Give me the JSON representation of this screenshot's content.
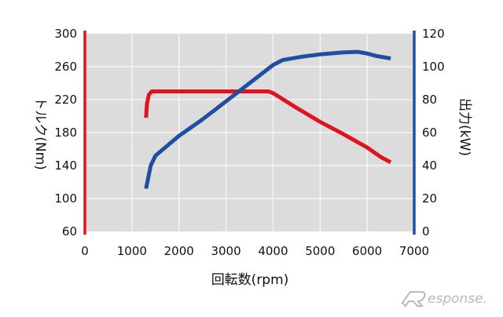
{
  "chart_data": {
    "type": "line",
    "xlabel": "回転数(rpm)",
    "x_ticks": [
      "0",
      "1000",
      "2000",
      "3000",
      "4000",
      "5000",
      "6000",
      "7000"
    ],
    "xlim": [
      0,
      7000
    ],
    "y_left": {
      "label": "トルク(Nm)",
      "ticks": [
        "60",
        "100",
        "140",
        "180",
        "220",
        "260",
        "300"
      ],
      "ylim": [
        60,
        300
      ],
      "color": "#e0141e"
    },
    "y_right": {
      "label": "出力(kW)",
      "ticks": [
        "0",
        "20",
        "40",
        "60",
        "80",
        "100",
        "120"
      ],
      "ylim": [
        0,
        120
      ],
      "color": "#1f4fa3"
    },
    "grid": true,
    "plot_background": "#dcdcdc",
    "series": [
      {
        "axis": "left",
        "color": "#e0141e",
        "points": [
          [
            1300,
            198
          ],
          [
            1320,
            215
          ],
          [
            1360,
            226
          ],
          [
            1420,
            230
          ],
          [
            1500,
            230
          ],
          [
            2000,
            230
          ],
          [
            3000,
            230
          ],
          [
            3500,
            230
          ],
          [
            3900,
            230
          ],
          [
            4000,
            228
          ],
          [
            4500,
            210
          ],
          [
            5000,
            193
          ],
          [
            5500,
            178
          ],
          [
            6000,
            162
          ],
          [
            6300,
            150
          ],
          [
            6500,
            144
          ]
        ]
      },
      {
        "axis": "right",
        "color": "#1f4fa3",
        "points": [
          [
            1300,
            26
          ],
          [
            1400,
            40
          ],
          [
            1500,
            46
          ],
          [
            2000,
            58
          ],
          [
            2500,
            68
          ],
          [
            3000,
            79
          ],
          [
            3500,
            90
          ],
          [
            4000,
            101
          ],
          [
            4200,
            104
          ],
          [
            4600,
            106
          ],
          [
            5000,
            107.5
          ],
          [
            5500,
            108.7
          ],
          [
            5800,
            109
          ],
          [
            6000,
            108
          ],
          [
            6200,
            106.5
          ],
          [
            6500,
            105
          ]
        ]
      }
    ]
  },
  "watermark": {
    "text": "esponse."
  }
}
